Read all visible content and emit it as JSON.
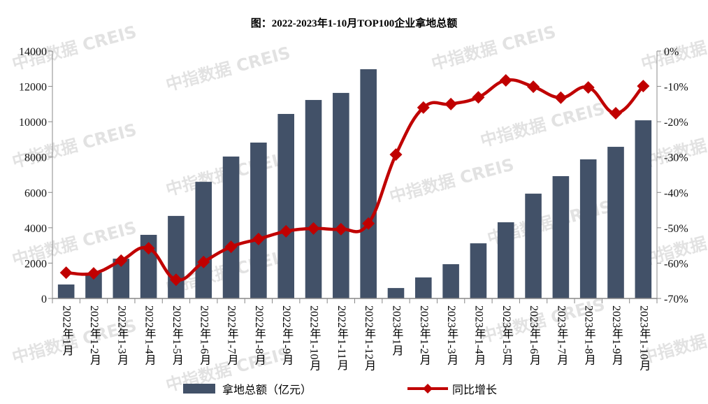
{
  "chart_data": {
    "type": "bar+line",
    "title": "图：2022-2023年1-10月TOP100企业拿地总额",
    "categories": [
      "2022年1月",
      "2022年1-2月",
      "2022年1-3月",
      "2022年1-4月",
      "2022年1-5月",
      "2022年1-6月",
      "2022年1-7月",
      "2022年1-8月",
      "2022年1-9月",
      "2022年1-10月",
      "2022年1-11月",
      "2022年1-12月",
      "2023年1月",
      "2023年1-2月",
      "2023年1-3月",
      "2023年1-4月",
      "2023年1-5月",
      "2023年1-6月",
      "2023年1-7月",
      "2023年1-8月",
      "2023年1-9月",
      "2023年1-10月"
    ],
    "series": [
      {
        "name": "拿地总额（亿元）",
        "type": "bar",
        "axis": "left",
        "color": "#425168",
        "values": [
          790,
          1460,
          2250,
          3600,
          4670,
          6600,
          8030,
          8820,
          10440,
          11230,
          11630,
          12970,
          590,
          1190,
          1940,
          3120,
          4310,
          5930,
          6920,
          7870,
          8580,
          10080
        ]
      },
      {
        "name": "同比增长",
        "type": "line",
        "axis": "right",
        "color": "#c00000",
        "marker": "diamond",
        "values": [
          -62.7,
          -62.9,
          -59.3,
          -55.8,
          -64.7,
          -59.7,
          -55.4,
          -53.2,
          -51.0,
          -50.2,
          -50.4,
          -48.8,
          -29.3,
          -16.0,
          -15.0,
          -13.1,
          -8.3,
          -10.1,
          -13.2,
          -10.3,
          -17.6,
          -9.9
        ]
      }
    ],
    "left_axis": {
      "ylim": [
        0,
        14000
      ],
      "ticks": [
        "0",
        "2000",
        "4000",
        "6000",
        "8000",
        "10000",
        "12000",
        "14000"
      ]
    },
    "right_axis": {
      "ylim": [
        -70,
        0
      ],
      "unit": "%",
      "ticks": [
        "-70%",
        "-60%",
        "-50%",
        "-40%",
        "-30%",
        "-20%",
        "-10%",
        "0%"
      ]
    },
    "grid": false,
    "legend": "bottom",
    "watermark": "中指数据 CREIS"
  }
}
